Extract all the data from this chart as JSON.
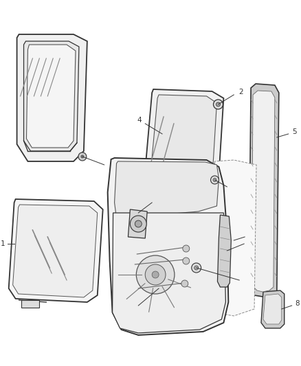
{
  "background_color": "#ffffff",
  "line_color": "#333333",
  "lw_main": 1.2,
  "lw_thin": 0.7,
  "figsize": [
    4.38,
    5.33
  ],
  "dpi": 100
}
